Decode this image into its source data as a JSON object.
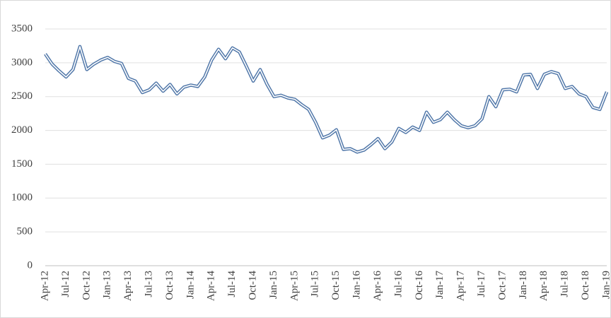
{
  "chart_data": {
    "type": "line",
    "categories": [
      "Apr-12",
      null,
      null,
      "Jul-12",
      null,
      null,
      "Oct-12",
      null,
      null,
      "Jan-13",
      null,
      null,
      "Apr-13",
      null,
      null,
      "Jul-13",
      null,
      null,
      "Oct-13",
      null,
      null,
      "Jan-14",
      null,
      null,
      "Apr-14",
      null,
      null,
      "Jul-14",
      null,
      null,
      "Oct-14",
      null,
      null,
      "Jan-15",
      null,
      null,
      "Apr-15",
      null,
      null,
      "Jul-15",
      null,
      null,
      "Oct-15",
      null,
      null,
      "Jan-16",
      null,
      null,
      "Apr-16",
      null,
      null,
      "Jul-16",
      null,
      null,
      "Oct-16",
      null,
      null,
      "Jan-17",
      null,
      null,
      "Apr-17",
      null,
      null,
      "Jul-17",
      null,
      null,
      "Oct-17",
      null,
      null,
      "Jan-18",
      null,
      null,
      "Apr-18",
      null,
      null,
      "Jul-18",
      null,
      null,
      "Oct-18",
      null,
      null,
      "Jan-19"
    ],
    "values": [
      3130,
      2980,
      2880,
      2790,
      2900,
      3240,
      2900,
      2980,
      3040,
      3080,
      3020,
      2990,
      2770,
      2730,
      2560,
      2600,
      2700,
      2580,
      2680,
      2540,
      2640,
      2670,
      2650,
      2790,
      3040,
      3200,
      3060,
      3220,
      3160,
      2950,
      2730,
      2900,
      2680,
      2500,
      2520,
      2480,
      2460,
      2380,
      2310,
      2120,
      1890,
      1930,
      2010,
      1720,
      1730,
      1680,
      1710,
      1790,
      1880,
      1730,
      1830,
      2030,
      1970,
      2050,
      2000,
      2270,
      2120,
      2160,
      2270,
      2160,
      2070,
      2040,
      2070,
      2170,
      2500,
      2350,
      2600,
      2610,
      2570,
      2820,
      2830,
      2620,
      2830,
      2870,
      2840,
      2620,
      2650,
      2540,
      2500,
      2340,
      2310,
      2570
    ],
    "color": "#4f76a8",
    "ylim": [
      0,
      3500
    ],
    "yticks": [
      0,
      500,
      1000,
      1500,
      2000,
      2500,
      3000,
      3500
    ],
    "grid": true
  }
}
